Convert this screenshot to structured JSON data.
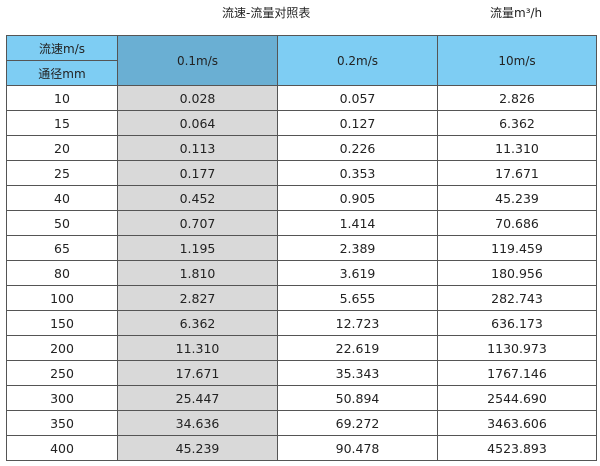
{
  "title": "流速-流量对照表",
  "unit": "流量m³/h",
  "header": {
    "velocity_label": "流速m/s",
    "diameter_label": "通径mm",
    "columns": [
      "0.1m/s",
      "0.2m/s",
      "10m/s"
    ]
  },
  "colors": {
    "header": "#7ecdf3",
    "highlight_header": "#6aafd3",
    "highlight_column": "#d9d9d9"
  },
  "rows": [
    [
      "10",
      "0.028",
      "0.057",
      "2.826"
    ],
    [
      "15",
      "0.064",
      "0.127",
      "6.362"
    ],
    [
      "20",
      "0.113",
      "0.226",
      "11.310"
    ],
    [
      "25",
      "0.177",
      "0.353",
      "17.671"
    ],
    [
      "40",
      "0.452",
      "0.905",
      "45.239"
    ],
    [
      "50",
      "0.707",
      "1.414",
      "70.686"
    ],
    [
      "65",
      "1.195",
      "2.389",
      "119.459"
    ],
    [
      "80",
      "1.810",
      "3.619",
      "180.956"
    ],
    [
      "100",
      "2.827",
      "5.655",
      "282.743"
    ],
    [
      "150",
      "6.362",
      "12.723",
      "636.173"
    ],
    [
      "200",
      "11.310",
      "22.619",
      "1130.973"
    ],
    [
      "250",
      "17.671",
      "35.343",
      "1767.146"
    ],
    [
      "300",
      "25.447",
      "50.894",
      "2544.690"
    ],
    [
      "350",
      "34.636",
      "69.272",
      "3463.606"
    ],
    [
      "400",
      "45.239",
      "90.478",
      "4523.893"
    ]
  ]
}
